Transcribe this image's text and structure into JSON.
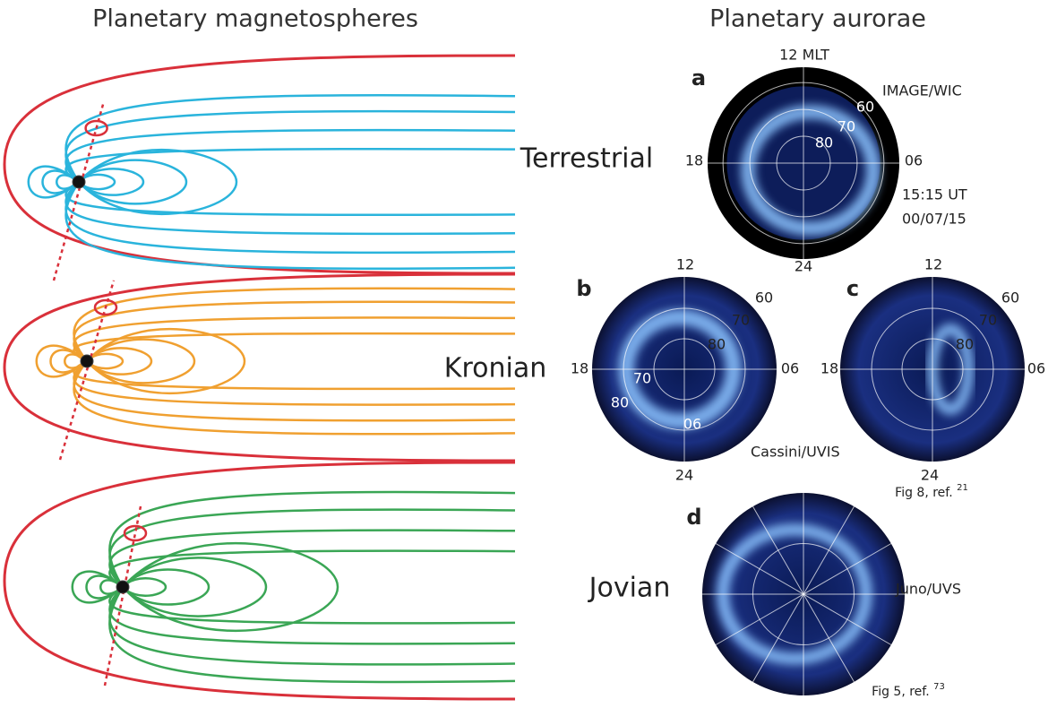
{
  "headings": {
    "left": "Planetary magnetospheres",
    "right": "Planetary aurorae"
  },
  "planets": [
    "Terrestrial",
    "Kronian",
    "Jovian"
  ],
  "panels": [
    {
      "letter": "a",
      "labels": [
        "12 MLT",
        "IMAGE/WIC",
        "60",
        "70",
        "80",
        "18",
        "06",
        "24",
        "15:15 UT",
        "00/07/15"
      ]
    },
    {
      "letter": "b",
      "labels": [
        "12",
        "60",
        "70",
        "80",
        "18",
        "06",
        "24",
        "70",
        "80",
        "06",
        "Cassini/UVIS"
      ]
    },
    {
      "letter": "c",
      "labels": [
        "12",
        "60",
        "70",
        "80",
        "18",
        "06",
        "24"
      ],
      "credit": {
        "text": "Fig 8, ref.",
        "ref": "21"
      }
    },
    {
      "letter": "d",
      "labels": [
        "Juno/UVS"
      ],
      "credit": {
        "text": "Fig 5, ref.",
        "ref": "73"
      }
    }
  ]
}
